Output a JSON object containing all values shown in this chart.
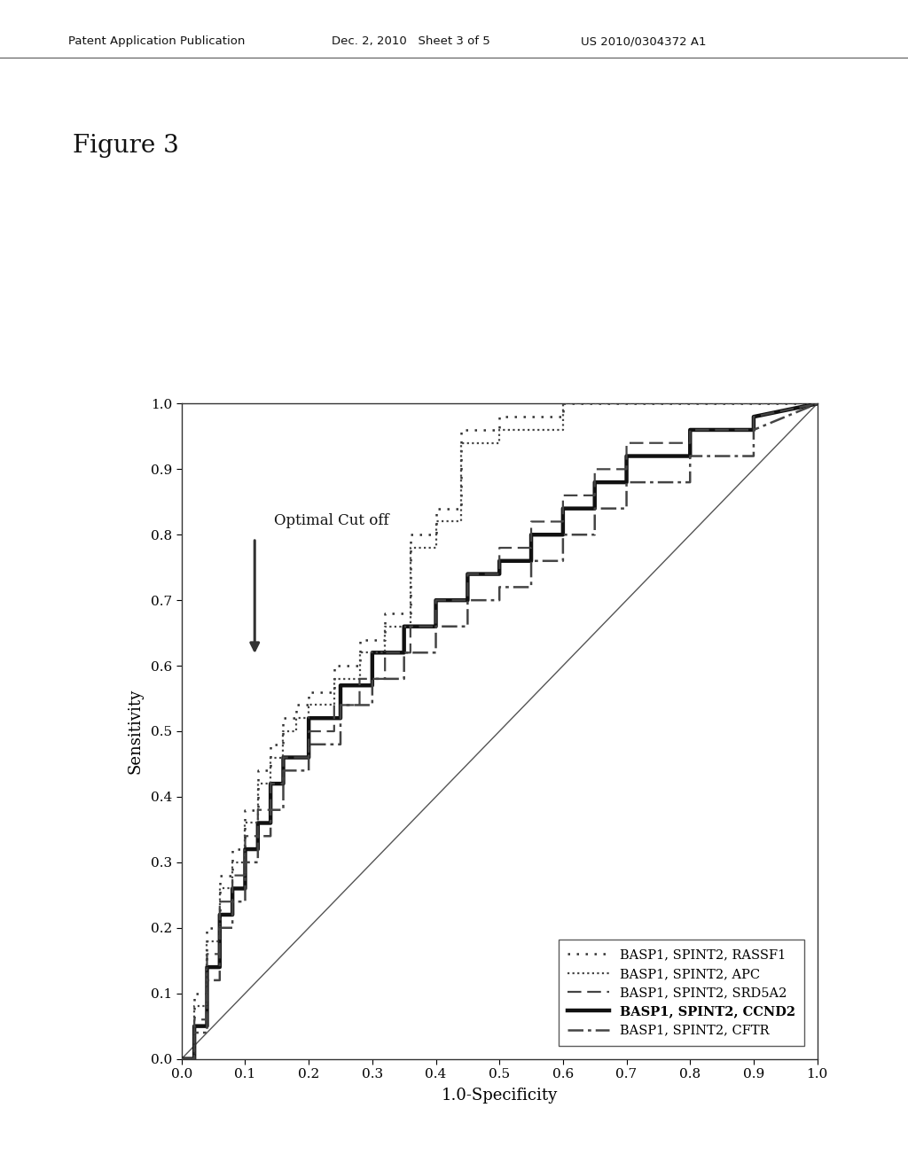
{
  "header_left": "Patent Application Publication",
  "header_mid": "Dec. 2, 2010   Sheet 3 of 5",
  "header_right": "US 2010/0304372 A1",
  "figure_label": "Figure 3",
  "xlabel": "1.0-Specificity",
  "ylabel": "Sensitivity",
  "xlim": [
    0.0,
    1.0
  ],
  "ylim": [
    0.0,
    1.0
  ],
  "xticks": [
    0.0,
    0.1,
    0.2,
    0.3,
    0.4,
    0.5,
    0.6,
    0.7,
    0.8,
    0.9,
    1.0
  ],
  "yticks": [
    0.0,
    0.1,
    0.2,
    0.3,
    0.4,
    0.5,
    0.6,
    0.7,
    0.8,
    0.9,
    1.0
  ],
  "background_color": "#ffffff",
  "plot_bg_color": "#ffffff",
  "curves": {
    "RASSF1": {
      "label": "BASP1, SPINT2, RASSF1",
      "x": [
        0.0,
        0.02,
        0.02,
        0.04,
        0.04,
        0.06,
        0.06,
        0.08,
        0.08,
        0.1,
        0.1,
        0.12,
        0.12,
        0.14,
        0.14,
        0.16,
        0.16,
        0.18,
        0.18,
        0.2,
        0.2,
        0.24,
        0.24,
        0.28,
        0.28,
        0.32,
        0.32,
        0.36,
        0.36,
        0.4,
        0.4,
        0.44,
        0.44,
        0.5,
        0.5,
        0.6,
        0.6,
        1.0
      ],
      "y": [
        0.0,
        0.0,
        0.1,
        0.1,
        0.2,
        0.2,
        0.28,
        0.28,
        0.32,
        0.32,
        0.38,
        0.38,
        0.44,
        0.44,
        0.48,
        0.48,
        0.52,
        0.52,
        0.54,
        0.54,
        0.56,
        0.56,
        0.6,
        0.6,
        0.64,
        0.64,
        0.68,
        0.68,
        0.8,
        0.8,
        0.84,
        0.84,
        0.96,
        0.96,
        0.98,
        0.98,
        1.0,
        1.0
      ]
    },
    "APC": {
      "label": "BASP1, SPINT2, APC",
      "x": [
        0.0,
        0.02,
        0.02,
        0.04,
        0.04,
        0.06,
        0.06,
        0.08,
        0.08,
        0.1,
        0.1,
        0.12,
        0.12,
        0.14,
        0.14,
        0.16,
        0.16,
        0.18,
        0.18,
        0.2,
        0.2,
        0.24,
        0.24,
        0.28,
        0.28,
        0.32,
        0.32,
        0.36,
        0.36,
        0.4,
        0.4,
        0.44,
        0.44,
        0.5,
        0.5,
        0.6,
        0.6,
        1.0
      ],
      "y": [
        0.0,
        0.0,
        0.08,
        0.08,
        0.18,
        0.18,
        0.26,
        0.26,
        0.3,
        0.3,
        0.36,
        0.36,
        0.42,
        0.42,
        0.46,
        0.46,
        0.5,
        0.5,
        0.52,
        0.52,
        0.54,
        0.54,
        0.58,
        0.58,
        0.62,
        0.62,
        0.66,
        0.66,
        0.78,
        0.78,
        0.82,
        0.82,
        0.94,
        0.94,
        0.96,
        0.96,
        1.0,
        1.0
      ]
    },
    "SRD5A2": {
      "label": "BASP1, SPINT2, SRD5A2",
      "x": [
        0.0,
        0.02,
        0.02,
        0.04,
        0.04,
        0.06,
        0.06,
        0.08,
        0.08,
        0.1,
        0.1,
        0.12,
        0.12,
        0.14,
        0.14,
        0.16,
        0.16,
        0.2,
        0.2,
        0.24,
        0.24,
        0.28,
        0.28,
        0.32,
        0.32,
        0.36,
        0.36,
        0.4,
        0.4,
        0.45,
        0.45,
        0.5,
        0.5,
        0.55,
        0.55,
        0.6,
        0.6,
        0.65,
        0.65,
        0.7,
        0.7,
        0.8,
        0.8,
        0.9,
        0.9,
        1.0
      ],
      "y": [
        0.0,
        0.0,
        0.06,
        0.06,
        0.16,
        0.16,
        0.24,
        0.24,
        0.28,
        0.28,
        0.34,
        0.34,
        0.38,
        0.38,
        0.42,
        0.42,
        0.46,
        0.46,
        0.5,
        0.5,
        0.54,
        0.54,
        0.58,
        0.58,
        0.62,
        0.62,
        0.66,
        0.66,
        0.7,
        0.7,
        0.74,
        0.74,
        0.78,
        0.78,
        0.82,
        0.82,
        0.86,
        0.86,
        0.9,
        0.9,
        0.94,
        0.94,
        0.96,
        0.96,
        0.98,
        1.0
      ]
    },
    "CCND2": {
      "label": "BASP1, SPINT2, CCND2",
      "x": [
        0.0,
        0.02,
        0.02,
        0.04,
        0.04,
        0.06,
        0.06,
        0.08,
        0.08,
        0.1,
        0.1,
        0.12,
        0.12,
        0.14,
        0.14,
        0.16,
        0.16,
        0.2,
        0.2,
        0.25,
        0.25,
        0.3,
        0.3,
        0.35,
        0.35,
        0.4,
        0.4,
        0.45,
        0.45,
        0.5,
        0.5,
        0.55,
        0.55,
        0.6,
        0.6,
        0.65,
        0.65,
        0.7,
        0.7,
        0.8,
        0.8,
        0.9,
        0.9,
        1.0
      ],
      "y": [
        0.0,
        0.0,
        0.05,
        0.05,
        0.14,
        0.14,
        0.22,
        0.22,
        0.26,
        0.26,
        0.32,
        0.32,
        0.36,
        0.36,
        0.42,
        0.42,
        0.46,
        0.46,
        0.52,
        0.52,
        0.57,
        0.57,
        0.62,
        0.62,
        0.66,
        0.66,
        0.7,
        0.7,
        0.74,
        0.74,
        0.76,
        0.76,
        0.8,
        0.8,
        0.84,
        0.84,
        0.88,
        0.88,
        0.92,
        0.92,
        0.96,
        0.96,
        0.98,
        1.0
      ]
    },
    "CFTR": {
      "label": "BASP1, SPINT2, CFTR",
      "x": [
        0.0,
        0.02,
        0.02,
        0.04,
        0.04,
        0.06,
        0.06,
        0.08,
        0.08,
        0.1,
        0.1,
        0.12,
        0.12,
        0.14,
        0.14,
        0.16,
        0.16,
        0.2,
        0.2,
        0.25,
        0.25,
        0.3,
        0.3,
        0.35,
        0.35,
        0.4,
        0.4,
        0.45,
        0.45,
        0.5,
        0.5,
        0.55,
        0.55,
        0.6,
        0.6,
        0.65,
        0.65,
        0.7,
        0.7,
        0.8,
        0.8,
        0.9,
        0.9,
        1.0
      ],
      "y": [
        0.0,
        0.0,
        0.04,
        0.04,
        0.12,
        0.12,
        0.2,
        0.2,
        0.24,
        0.24,
        0.3,
        0.3,
        0.34,
        0.34,
        0.38,
        0.38,
        0.44,
        0.44,
        0.48,
        0.48,
        0.54,
        0.54,
        0.58,
        0.58,
        0.62,
        0.62,
        0.66,
        0.66,
        0.7,
        0.7,
        0.72,
        0.72,
        0.76,
        0.76,
        0.8,
        0.8,
        0.84,
        0.84,
        0.88,
        0.88,
        0.92,
        0.92,
        0.96,
        1.0
      ]
    }
  }
}
